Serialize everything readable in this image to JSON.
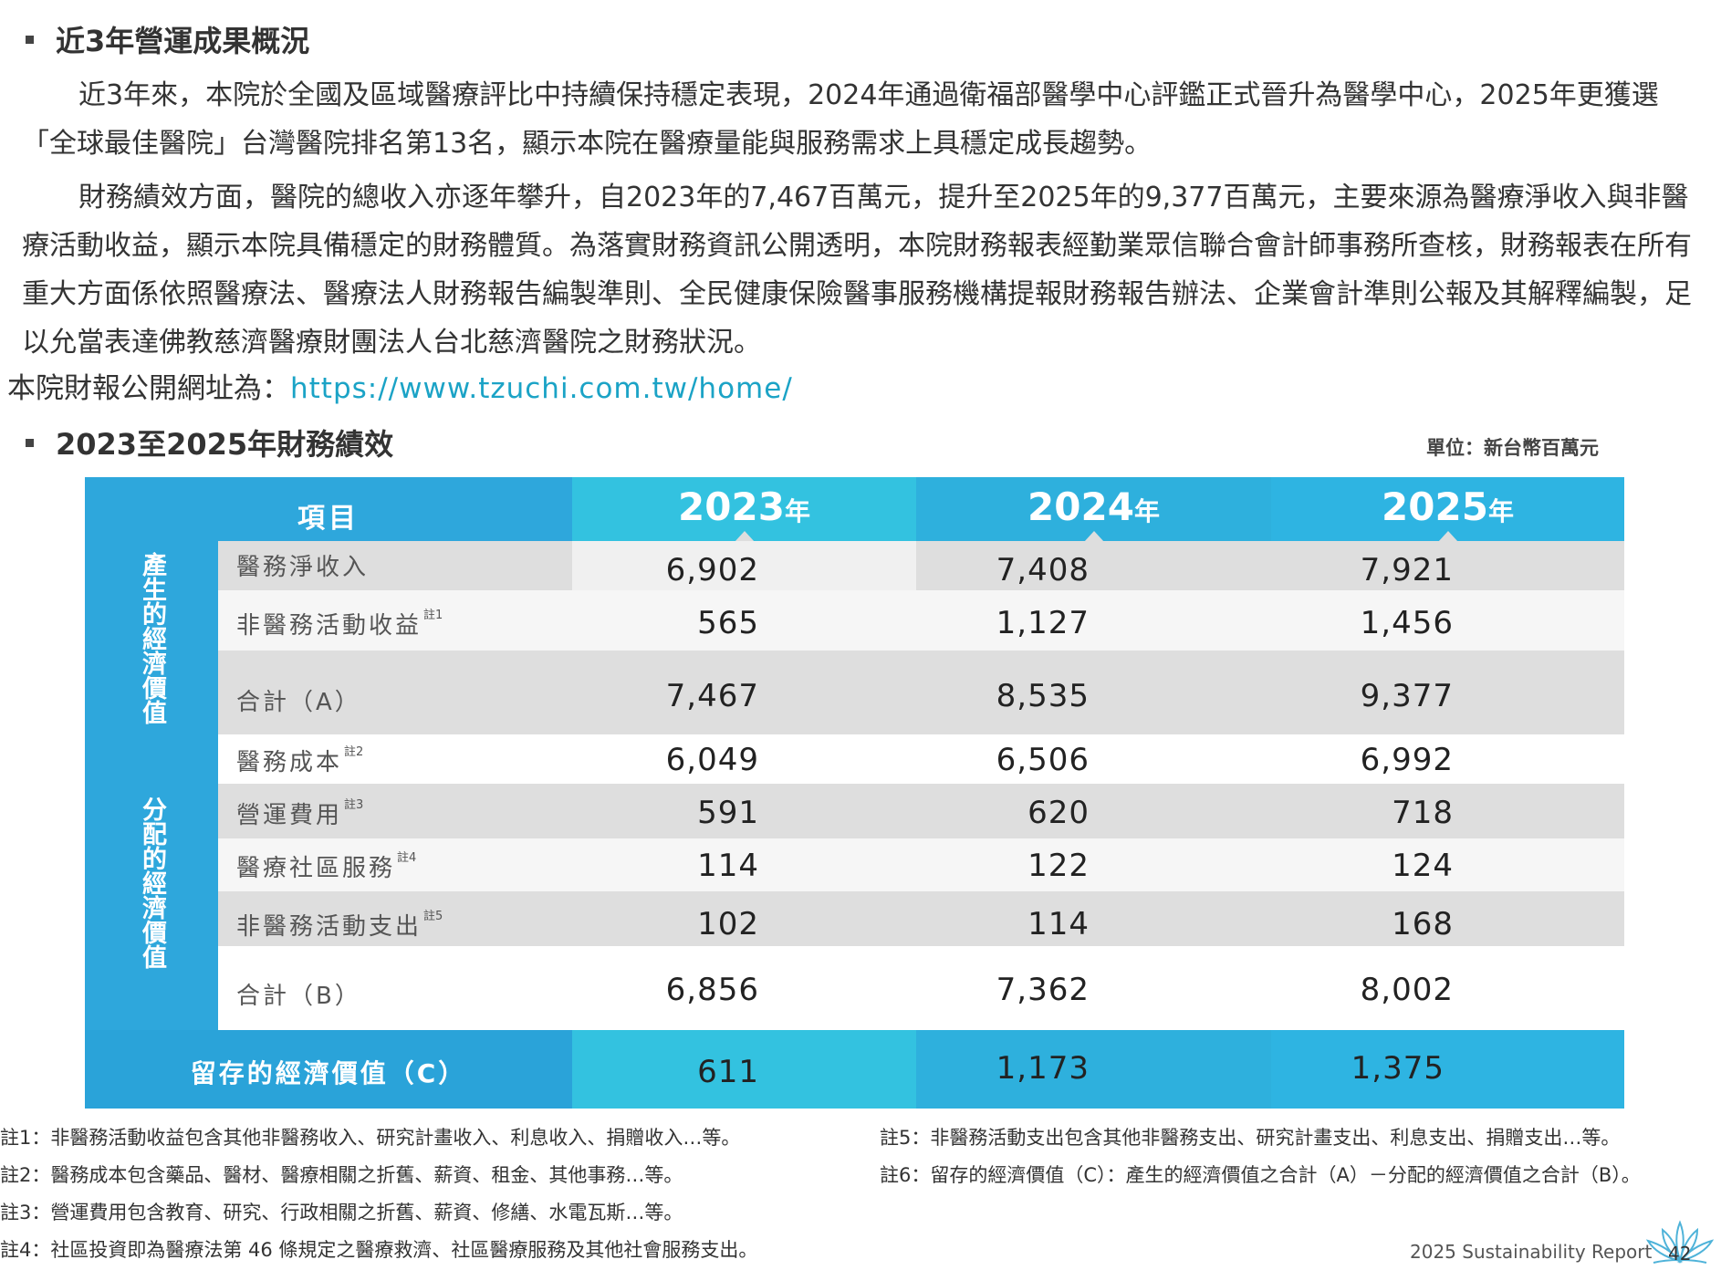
{
  "section1": {
    "title": "近3年營運成果概況",
    "para1": "近3年來，本院於全國及區域醫療評比中持續保持穩定表現，2024年通過衛福部醫學中心評鑑正式晉升為醫學中心，2025年更獲選「全球最佳醫院」台灣醫院排名第13名，顯示本院在醫療量能與服務需求上具穩定成長趨勢。",
    "para2": "財務績效方面，醫院的總收入亦逐年攀升，自2023年的7,467百萬元，提升至2025年的9,377百萬元，主要來源為醫療淨收入與非醫療活動收益，顯示本院具備穩定的財務體質。為落實財務資訊公開透明，本院財務報表經勤業眾信聯合會計師事務所查核，財務報表在所有重大方面係依照醫療法、醫療法人財務報告編製準則、全民健康保險醫事服務機構提報財務報告辦法、企業會計準則公報及其解釋編製，足以允當表達佛教慈濟醫療財團法人台北慈濟醫院之財務狀況。",
    "url_label": "本院財報公開網址為：",
    "url": "https://www.tzuchi.com.tw/home/"
  },
  "section2": {
    "title": "2023至2025年財務績效",
    "unit": "單位：新台幣百萬元"
  },
  "table": {
    "header_item": "項目",
    "years": [
      {
        "num": "2023",
        "suffix": "年"
      },
      {
        "num": "2024",
        "suffix": "年"
      },
      {
        "num": "2025",
        "suffix": "年"
      }
    ],
    "group1_label": "產生的經濟價值",
    "group2_label": "分配的經濟價值",
    "rows": [
      {
        "label": "醫務淨收入",
        "note": "",
        "v": [
          "6,902",
          "7,408",
          "7,921"
        ]
      },
      {
        "label": "非醫務活動收益",
        "note": "註1",
        "v": [
          "565",
          "1,127",
          "1,456"
        ]
      },
      {
        "label": "合計（A）",
        "note": "",
        "v": [
          "7,467",
          "8,535",
          "9,377"
        ]
      },
      {
        "label": "醫務成本",
        "note": "註2",
        "v": [
          "6,049",
          "6,506",
          "6,992"
        ]
      },
      {
        "label": "營運費用",
        "note": "註3",
        "v": [
          "591",
          "620",
          "718"
        ]
      },
      {
        "label": "醫療社區服務",
        "note": "註4",
        "v": [
          "114",
          "122",
          "124"
        ]
      },
      {
        "label": "非醫務活動支出",
        "note": "註5",
        "v": [
          "102",
          "114",
          "168"
        ]
      },
      {
        "label": "合計（B）",
        "note": "",
        "v": [
          "6,856",
          "7,362",
          "8,002"
        ]
      }
    ],
    "total": {
      "label": "留存的經濟價值（C）",
      "v": [
        "611",
        "1,173",
        "1,375"
      ]
    }
  },
  "notes": {
    "n1": "註1：非醫務活動收益包含其他非醫務收入、研究計畫收入、利息收入、捐贈收入…等。",
    "n2": "註2：醫務成本包含藥品、醫材、醫療相關之折舊、薪資、租金、其他事務…等。",
    "n3": "註3：營運費用包含教育、研究、行政相關之折舊、薪資、修繕、水電瓦斯…等。",
    "n4": "註4：社區投資即為醫療法第 46 條規定之醫療救濟、社區醫療服務及其他社會服務支出。",
    "n5": "註5：非醫務活動支出包含其他非醫務支出、研究計畫支出、利息支出、捐贈支出…等。",
    "n6": "註6：留存的經濟價值（C）：產生的經濟價值之合計（A）－分配的經濟價值之合計（B）。"
  },
  "footer": {
    "report": "2025 Sustainability Report",
    "page": "42"
  },
  "colors": {
    "accent": "#2ea7dc",
    "accent_light": "#33c2e0",
    "link": "#1ba3c6",
    "row_gray": "#dedede",
    "row_white": "#f6f6f6"
  }
}
